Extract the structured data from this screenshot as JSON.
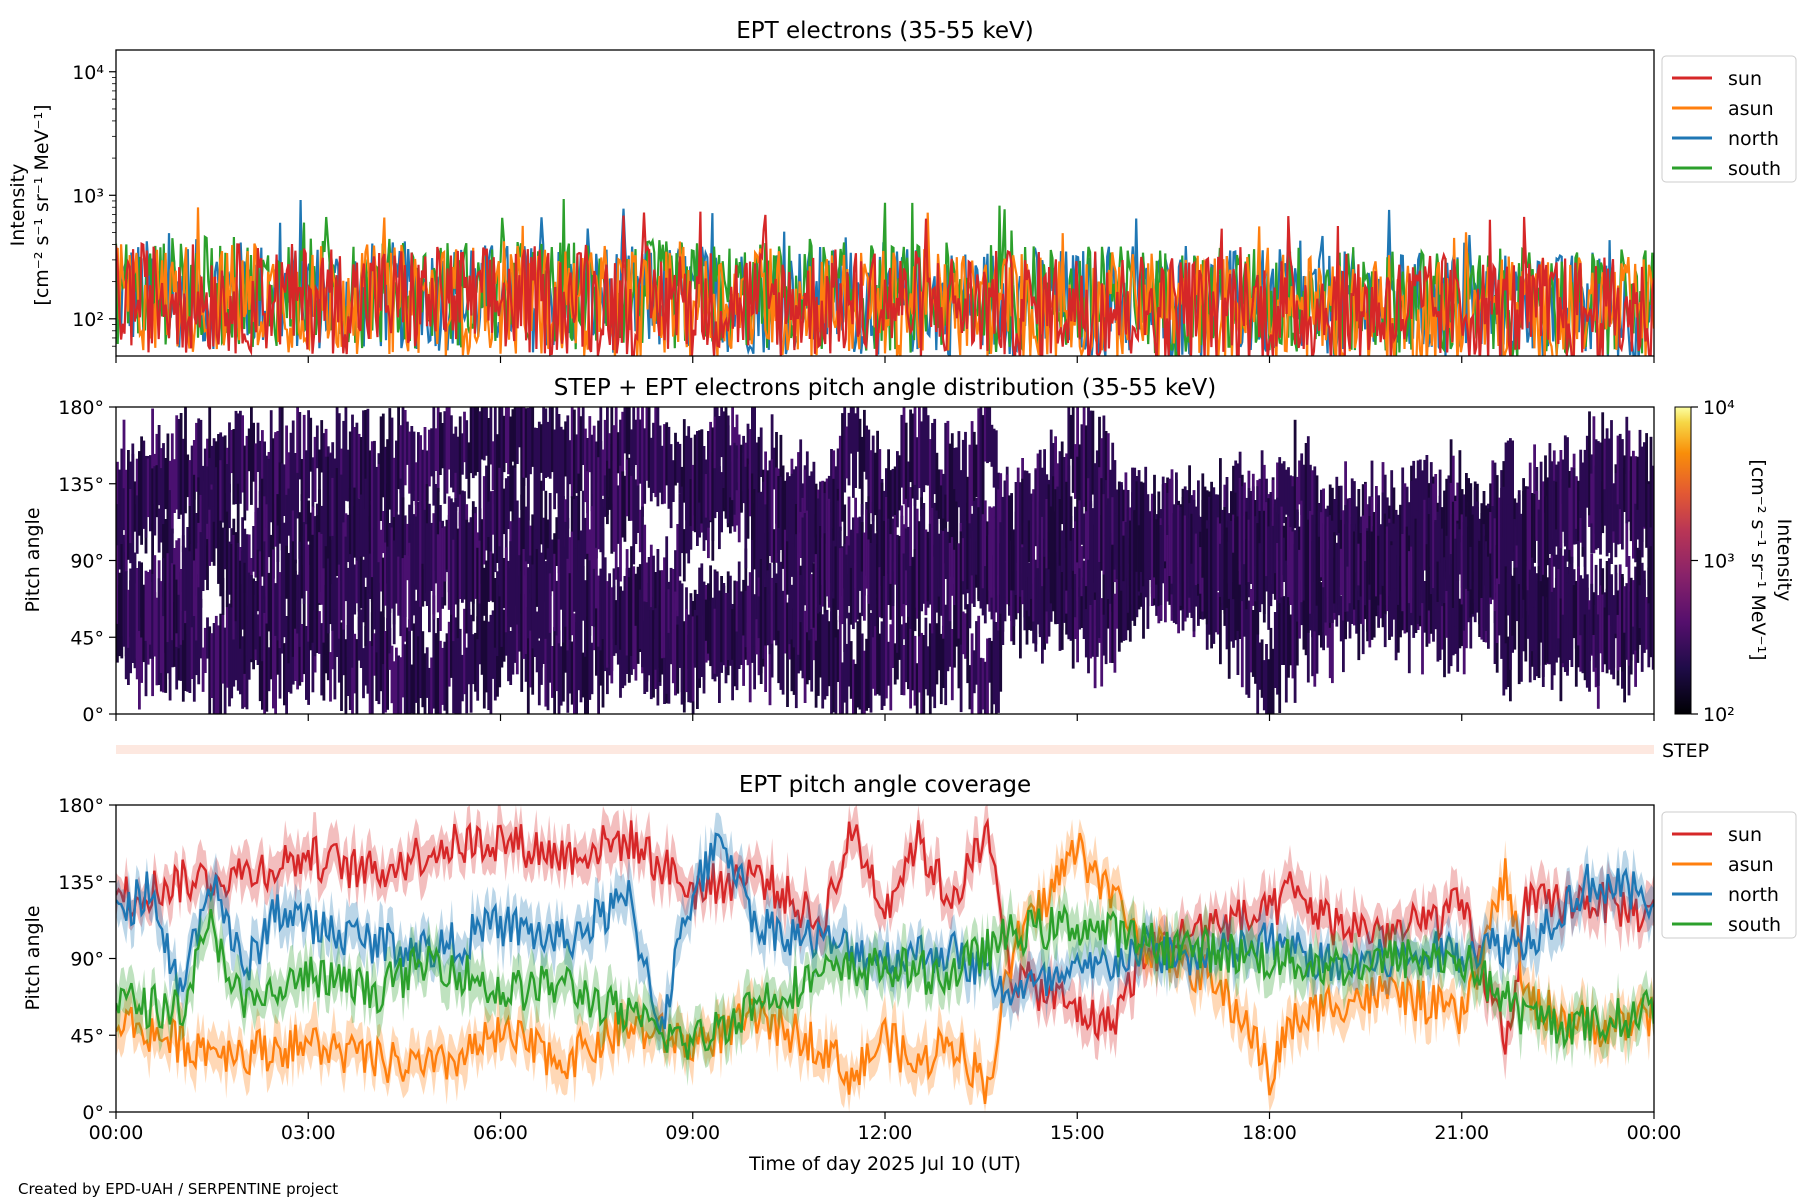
{
  "colors": {
    "sun": "#d62728",
    "asun": "#ff7f0e",
    "north": "#1f77b4",
    "south": "#2ca02c",
    "pad": "#2a0a4e",
    "step_bar": "#fde8e0"
  },
  "footer": {
    "credit": "Created by EPD-UAH / SERPENTINE project"
  },
  "chart_data": [
    {
      "type": "line",
      "title": "EPT electrons (35-55 keV)",
      "ylabel_1": "Intensity",
      "ylabel_2": "[cm⁻² s⁻¹ sr⁻¹ MeV⁻¹]",
      "yscale": "log",
      "ylim": [
        50,
        15000
      ],
      "yticks": [
        {
          "value": 100,
          "label": "10²"
        },
        {
          "value": 1000,
          "label": "10³"
        },
        {
          "value": 10000,
          "label": "10⁴"
        }
      ],
      "xlim": [
        "00:00",
        "24:00"
      ],
      "legend_placement": "outside right",
      "legend": [
        "sun",
        "asun",
        "north",
        "south"
      ],
      "series": [
        {
          "name": "north",
          "color": "#1f77b4",
          "base": 160,
          "spread": 0.45
        },
        {
          "name": "south",
          "color": "#2ca02c",
          "base": 170,
          "spread": 0.45
        },
        {
          "name": "asun",
          "color": "#ff7f0e",
          "base": 150,
          "spread": 0.45
        },
        {
          "name": "sun",
          "color": "#d62728",
          "base": 150,
          "spread": 0.45
        }
      ]
    },
    {
      "type": "heatmap",
      "title": "STEP + EPT electrons pitch angle distribution (35-55 keV)",
      "ylabel": "Pitch angle",
      "ylim": [
        0,
        180
      ],
      "yticks": [
        "0°",
        "45°",
        "90°",
        "135°",
        "180°"
      ],
      "colorbar": {
        "label_1": "Intensity",
        "label_2": "[cm⁻² s⁻¹ sr⁻¹ MeV⁻¹]",
        "scale": "log",
        "range": [
          100,
          10000
        ],
        "ticks": [
          "10²",
          "10³",
          "10⁴"
        ]
      },
      "step_label": "STEP"
    },
    {
      "type": "line",
      "title": "EPT pitch angle coverage",
      "ylabel": "Pitch angle",
      "xlabel": "Time of day 2025 Jul 10 (UT)",
      "ylim": [
        0,
        180
      ],
      "yticks": [
        "0°",
        "45°",
        "90°",
        "135°",
        "180°"
      ],
      "xticks": [
        "00:00",
        "03:00",
        "06:00",
        "09:00",
        "12:00",
        "15:00",
        "18:00",
        "21:00",
        "00:00"
      ],
      "legend_placement": "outside right",
      "legend": [
        "sun",
        "asun",
        "north",
        "south"
      ],
      "series": [
        {
          "name": "sun",
          "color": "#d62728",
          "keyframes": [
            [
              0,
              125
            ],
            [
              1,
              135
            ],
            [
              2,
              140
            ],
            [
              3,
              150
            ],
            [
              4,
              140
            ],
            [
              5,
              155
            ],
            [
              6,
              160
            ],
            [
              7,
              150
            ],
            [
              8,
              160
            ],
            [
              9,
              130
            ],
            [
              10,
              140
            ],
            [
              11,
              110
            ],
            [
              11.5,
              165
            ],
            [
              12,
              120
            ],
            [
              12.5,
              160
            ],
            [
              13,
              125
            ],
            [
              13.6,
              160
            ],
            [
              14,
              80
            ],
            [
              15,
              60
            ],
            [
              15.5,
              50
            ],
            [
              16,
              90
            ],
            [
              17,
              110
            ],
            [
              18,
              115
            ],
            [
              18.3,
              130
            ],
            [
              19,
              110
            ],
            [
              20,
              105
            ],
            [
              21,
              120
            ],
            [
              21.7,
              40
            ],
            [
              22,
              120
            ],
            [
              23,
              125
            ],
            [
              24,
              115
            ]
          ]
        },
        {
          "name": "asun",
          "color": "#ff7f0e",
          "keyframes": [
            [
              0,
              55
            ],
            [
              1,
              40
            ],
            [
              2,
              35
            ],
            [
              3,
              40
            ],
            [
              4,
              30
            ],
            [
              5,
              25
            ],
            [
              6,
              45
            ],
            [
              7,
              30
            ],
            [
              8,
              50
            ],
            [
              9,
              40
            ],
            [
              10,
              55
            ],
            [
              11,
              40
            ],
            [
              11.5,
              20
            ],
            [
              12,
              45
            ],
            [
              12.5,
              25
            ],
            [
              13,
              45
            ],
            [
              13.6,
              15
            ],
            [
              14,
              95
            ],
            [
              15,
              155
            ],
            [
              15.5,
              130
            ],
            [
              16,
              100
            ],
            [
              17,
              80
            ],
            [
              17.7,
              50
            ],
            [
              18,
              20
            ],
            [
              18.3,
              50
            ],
            [
              19,
              65
            ],
            [
              20,
              70
            ],
            [
              21,
              55
            ],
            [
              21.7,
              140
            ],
            [
              22,
              65
            ],
            [
              23,
              50
            ],
            [
              24,
              55
            ]
          ]
        },
        {
          "name": "north",
          "color": "#1f77b4",
          "keyframes": [
            [
              0,
              115
            ],
            [
              0.5,
              130
            ],
            [
              1,
              70
            ],
            [
              1.5,
              140
            ],
            [
              2,
              80
            ],
            [
              2.5,
              120
            ],
            [
              3,
              110
            ],
            [
              4,
              100
            ],
            [
              5,
              95
            ],
            [
              6,
              110
            ],
            [
              7,
              100
            ],
            [
              8,
              125
            ],
            [
              8.5,
              50
            ],
            [
              9,
              130
            ],
            [
              9.5,
              160
            ],
            [
              10,
              110
            ],
            [
              11,
              100
            ],
            [
              12,
              90
            ],
            [
              13,
              95
            ],
            [
              14,
              70
            ],
            [
              15,
              80
            ],
            [
              16,
              95
            ],
            [
              17,
              90
            ],
            [
              18,
              100
            ],
            [
              19,
              85
            ],
            [
              20,
              90
            ],
            [
              21,
              95
            ],
            [
              22,
              100
            ],
            [
              23,
              135
            ],
            [
              24,
              125
            ]
          ]
        },
        {
          "name": "south",
          "color": "#2ca02c",
          "keyframes": [
            [
              0,
              65
            ],
            [
              1,
              60
            ],
            [
              1.5,
              110
            ],
            [
              2,
              60
            ],
            [
              3,
              80
            ],
            [
              4,
              70
            ],
            [
              5,
              90
            ],
            [
              6,
              70
            ],
            [
              7,
              75
            ],
            [
              8,
              55
            ],
            [
              9,
              40
            ],
            [
              10,
              65
            ],
            [
              11,
              80
            ],
            [
              12,
              85
            ],
            [
              13,
              80
            ],
            [
              14,
              105
            ],
            [
              15,
              110
            ],
            [
              16,
              100
            ],
            [
              17,
              95
            ],
            [
              18,
              90
            ],
            [
              19,
              85
            ],
            [
              20,
              90
            ],
            [
              21,
              90
            ],
            [
              22,
              55
            ],
            [
              23,
              50
            ],
            [
              24,
              60
            ]
          ]
        }
      ]
    }
  ]
}
